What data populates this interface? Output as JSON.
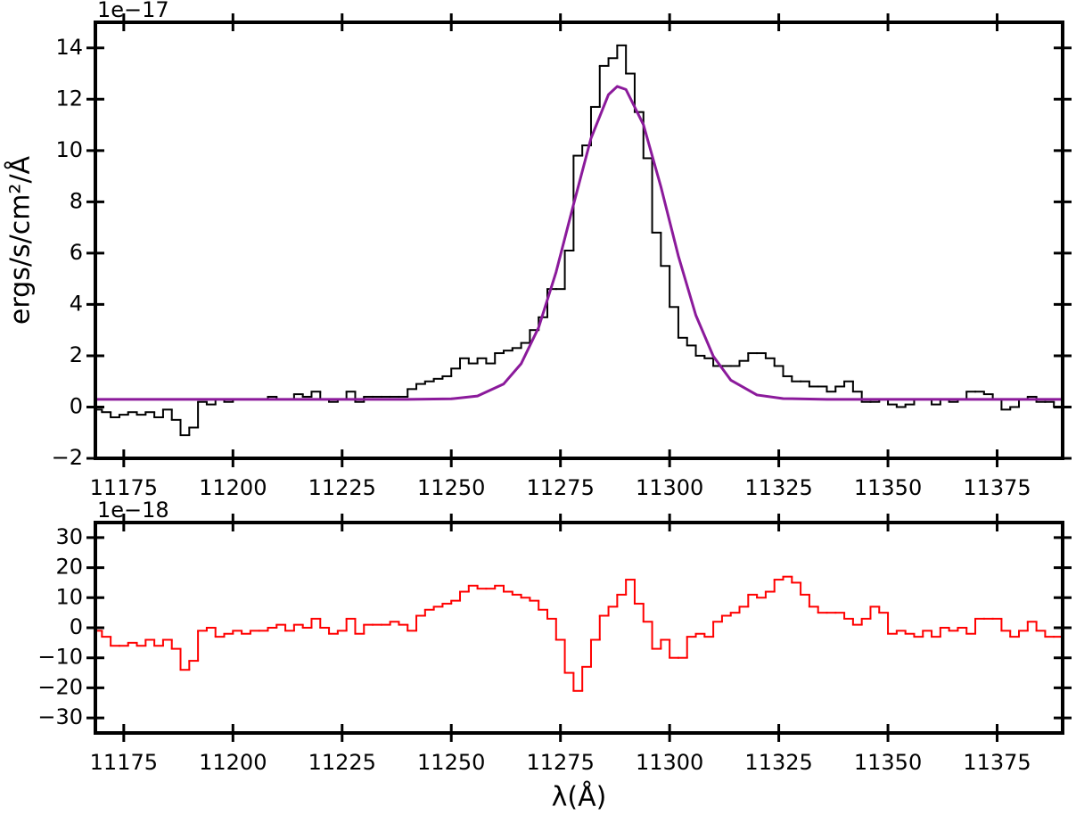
{
  "chart_data": [
    {
      "type": "line",
      "ylabel": "ergs/s/cm²/Å",
      "offset_text": "1e−17",
      "xlim": [
        11168.5,
        11390
      ],
      "xticks": [
        11175,
        11200,
        11225,
        11250,
        11275,
        11300,
        11325,
        11350,
        11375
      ],
      "ylim": [
        -2,
        15
      ],
      "yticks": [
        {
          "value": -2,
          "label": "−2"
        },
        0,
        2,
        4,
        6,
        8,
        10,
        12,
        14
      ],
      "series": [
        {
          "color": "#000000",
          "drawstyle": "steps-mid",
          "x": [
            11169,
            11171,
            11173,
            11175,
            11177,
            11179,
            11181,
            11183,
            11185,
            11187,
            11189,
            11191,
            11193,
            11195,
            11197,
            11199,
            11201,
            11203,
            11205,
            11207,
            11209,
            11211,
            11213,
            11215,
            11217,
            11219,
            11221,
            11223,
            11225,
            11227,
            11229,
            11231,
            11233,
            11235,
            11237,
            11239,
            11241,
            11243,
            11245,
            11247,
            11249,
            11251,
            11253,
            11255,
            11257,
            11259,
            11261,
            11263,
            11265,
            11267,
            11269,
            11271,
            11273,
            11275,
            11277,
            11279,
            11281,
            11283,
            11285,
            11287,
            11289,
            11291,
            11293,
            11295,
            11297,
            11299,
            11301,
            11303,
            11305,
            11307,
            11309,
            11311,
            11313,
            11315,
            11317,
            11319,
            11321,
            11323,
            11325,
            11327,
            11329,
            11331,
            11333,
            11335,
            11337,
            11339,
            11341,
            11343,
            11345,
            11347,
            11349,
            11351,
            11353,
            11355,
            11357,
            11359,
            11361,
            11363,
            11365,
            11367,
            11369,
            11371,
            11373,
            11375,
            11377,
            11379,
            11381,
            11383,
            11385,
            11387,
            11389
          ],
          "values": [
            -0.1,
            -0.2,
            -0.4,
            -0.3,
            -0.2,
            -0.3,
            -0.2,
            -0.4,
            -0.1,
            -0.5,
            -1.1,
            -0.8,
            0.2,
            0.1,
            0.3,
            0.2,
            0.3,
            0.3,
            0.3,
            0.3,
            0.4,
            0.3,
            0.3,
            0.5,
            0.4,
            0.6,
            0.3,
            0.2,
            0.3,
            0.6,
            0.2,
            0.4,
            0.4,
            0.4,
            0.4,
            0.4,
            0.7,
            0.9,
            1.0,
            1.1,
            1.2,
            1.5,
            1.9,
            1.7,
            1.9,
            1.7,
            2.1,
            2.2,
            2.3,
            2.5,
            3.0,
            3.5,
            4.6,
            4.6,
            6.1,
            9.8,
            10.2,
            11.7,
            13.3,
            13.6,
            14.1,
            13.0,
            11.5,
            9.7,
            6.8,
            5.5,
            3.9,
            2.7,
            2.4,
            2.0,
            1.9,
            1.6,
            1.6,
            1.6,
            1.8,
            2.1,
            2.1,
            1.9,
            1.6,
            1.2,
            1.0,
            1.0,
            0.8,
            0.8,
            0.6,
            0.8,
            1.0,
            0.6,
            0.2,
            0.2,
            0.3,
            0.1,
            0.0,
            0.1,
            0.3,
            0.3,
            0.1,
            0.3,
            0.2,
            0.3,
            0.6,
            0.6,
            0.5,
            0.3,
            -0.1,
            0.0,
            0.3,
            0.4,
            0.2,
            0.2,
            0.0
          ]
        },
        {
          "color": "#8b1a9b",
          "x": [
            11168,
            11200,
            11230,
            11240,
            11250,
            11256,
            11262,
            11266,
            11270,
            11274,
            11278,
            11282,
            11286,
            11288,
            11290,
            11294,
            11298,
            11302,
            11306,
            11310,
            11314,
            11320,
            11326,
            11336,
            11350,
            11390
          ],
          "values": [
            0.3,
            0.3,
            0.3,
            0.3,
            0.32,
            0.43,
            0.9,
            1.69,
            3.1,
            5.26,
            7.9,
            10.48,
            12.18,
            12.5,
            12.38,
            11.01,
            8.59,
            5.89,
            3.58,
            1.98,
            1.05,
            0.47,
            0.33,
            0.3,
            0.3,
            0.3
          ]
        }
      ]
    },
    {
      "type": "line",
      "xlabel": "λ(Å)",
      "offset_text": "1e−18",
      "xlim": [
        11168.5,
        11390
      ],
      "xticks": [
        11175,
        11200,
        11225,
        11250,
        11275,
        11300,
        11325,
        11350,
        11375
      ],
      "ylim": [
        -35,
        35
      ],
      "yticks": [
        {
          "value": -30,
          "label": "−30"
        },
        {
          "value": -20,
          "label": "−20"
        },
        {
          "value": -10,
          "label": "−10"
        },
        0,
        10,
        20,
        30
      ],
      "series": [
        {
          "color": "#ff0000",
          "drawstyle": "steps-mid",
          "x": [
            11169,
            11171,
            11173,
            11175,
            11177,
            11179,
            11181,
            11183,
            11185,
            11187,
            11189,
            11191,
            11193,
            11195,
            11197,
            11199,
            11201,
            11203,
            11205,
            11207,
            11209,
            11211,
            11213,
            11215,
            11217,
            11219,
            11221,
            11223,
            11225,
            11227,
            11229,
            11231,
            11233,
            11235,
            11237,
            11239,
            11241,
            11243,
            11245,
            11247,
            11249,
            11251,
            11253,
            11255,
            11257,
            11259,
            11261,
            11263,
            11265,
            11267,
            11269,
            11271,
            11273,
            11275,
            11277,
            11279,
            11281,
            11283,
            11285,
            11287,
            11289,
            11291,
            11293,
            11295,
            11297,
            11299,
            11301,
            11303,
            11305,
            11307,
            11309,
            11311,
            11313,
            11315,
            11317,
            11319,
            11321,
            11323,
            11325,
            11327,
            11329,
            11331,
            11333,
            11335,
            11337,
            11339,
            11341,
            11343,
            11345,
            11347,
            11349,
            11351,
            11353,
            11355,
            11357,
            11359,
            11361,
            11363,
            11365,
            11367,
            11369,
            11371,
            11373,
            11375,
            11377,
            11379,
            11381,
            11383,
            11385,
            11387,
            11389
          ],
          "values": [
            -1,
            -3,
            -6,
            -6,
            -5,
            -6,
            -4,
            -6,
            -4,
            -7,
            -14,
            -11,
            -1,
            0,
            -3,
            -2,
            -1,
            -2,
            -1,
            -1,
            0,
            1,
            -1,
            1,
            0,
            3,
            0,
            -2,
            -1,
            3,
            -2,
            1,
            1,
            1,
            2,
            1,
            -1,
            4,
            6,
            7,
            8,
            9,
            12,
            14,
            13,
            13,
            14,
            12,
            11,
            10,
            9,
            6,
            3,
            -4,
            -15,
            -21,
            -13,
            -4,
            4,
            7,
            11,
            16,
            8,
            2,
            -7,
            -4,
            -10,
            -10,
            -3,
            -2,
            -3,
            2,
            4,
            5,
            7,
            11,
            10,
            12,
            16,
            17,
            15,
            11,
            7,
            5,
            5,
            5,
            3,
            1,
            3,
            7,
            5,
            -2,
            -1,
            -2,
            -3,
            -1,
            -3,
            0,
            -1,
            0,
            -2,
            3,
            3,
            3,
            -1,
            -3,
            -1,
            2,
            -1,
            -3,
            -3
          ]
        }
      ]
    }
  ]
}
